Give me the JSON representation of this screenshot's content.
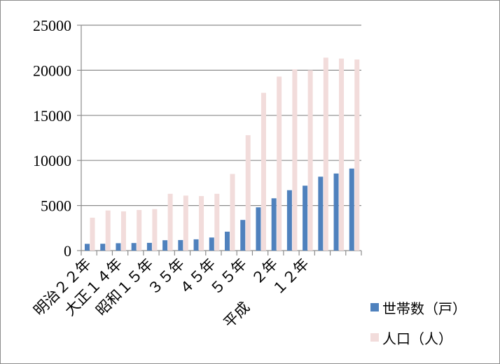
{
  "chart_data": {
    "type": "bar",
    "categories": [
      "明治２２年",
      "",
      "大正１４年",
      "",
      "昭和１５年",
      "",
      "３５年",
      "",
      "４５年",
      "",
      "５５年",
      "",
      "平成　２年",
      "",
      "１２年",
      "",
      "",
      ""
    ],
    "category_labels_shown": [
      "明治２２年",
      "大正１４年",
      "昭和１５年",
      "３５年",
      "４５年",
      "５５年",
      "平成",
      "２年",
      "１２年"
    ],
    "series": [
      {
        "name": "世帯数（戸）",
        "color": "#4f81bd",
        "values": [
          750,
          760,
          820,
          840,
          860,
          1150,
          1170,
          1250,
          1450,
          2100,
          3400,
          4800,
          5800,
          6700,
          7200,
          8200,
          8550,
          9100
        ]
      },
      {
        "name": "人口（人）",
        "color": "#f2dcdb",
        "values": [
          3650,
          4450,
          4350,
          4500,
          4600,
          6300,
          6100,
          6050,
          6300,
          8500,
          12800,
          17500,
          19300,
          20100,
          20000,
          21400,
          21300,
          21200
        ]
      }
    ],
    "yticks": [
      0,
      5000,
      10000,
      15000,
      20000,
      25000
    ],
    "ylim": [
      0,
      25000
    ],
    "grid": true,
    "legend_position": "right"
  }
}
